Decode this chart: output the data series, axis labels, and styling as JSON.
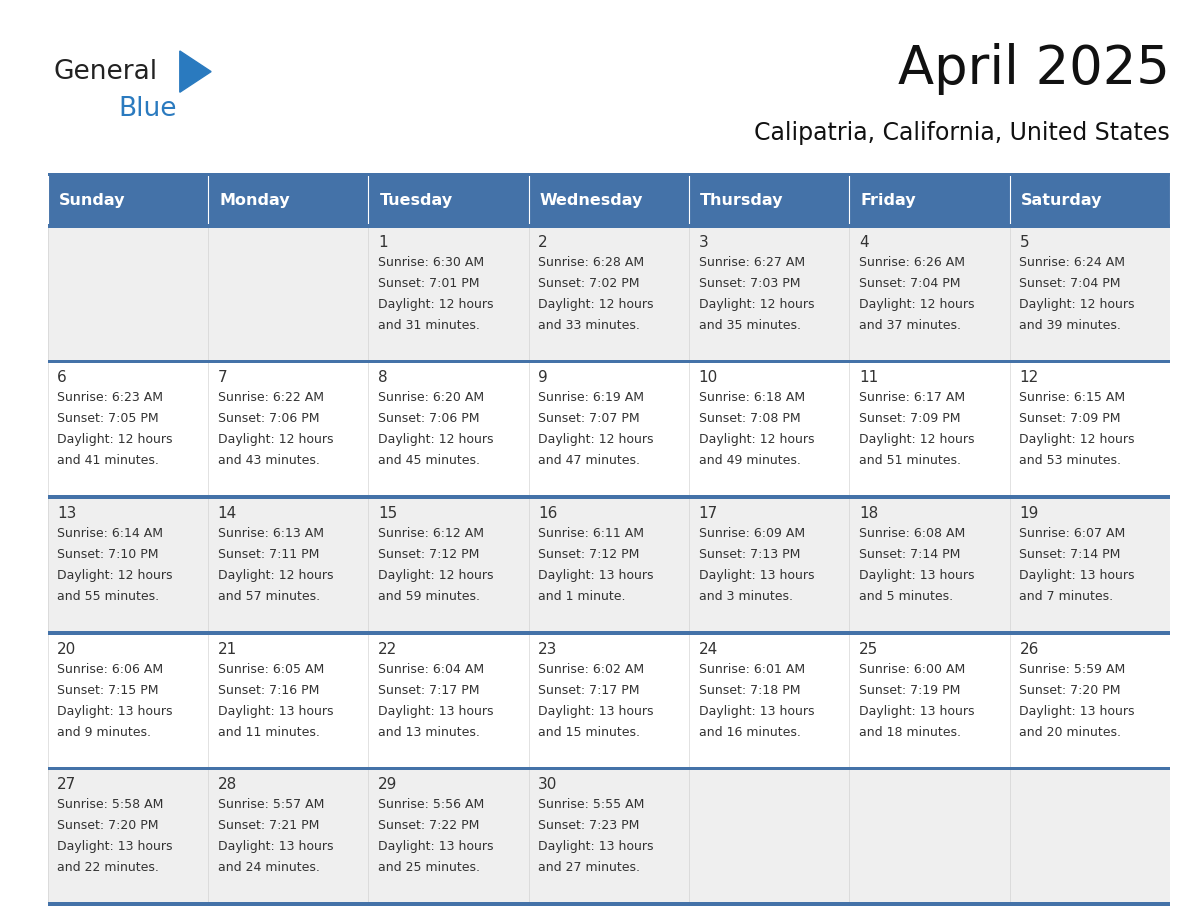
{
  "title": "April 2025",
  "subtitle": "Calipatria, California, United States",
  "header_color": "#4472a8",
  "header_text_color": "#ffffff",
  "day_names": [
    "Sunday",
    "Monday",
    "Tuesday",
    "Wednesday",
    "Thursday",
    "Friday",
    "Saturday"
  ],
  "bg_color": "#ffffff",
  "row_bg": [
    "#efefef",
    "#ffffff",
    "#efefef",
    "#ffffff",
    "#efefef"
  ],
  "border_color": "#4472a8",
  "text_color": "#333333",
  "logo_general_color": "#222222",
  "logo_blue_color": "#2a7abf",
  "logo_triangle_color": "#2a7abf",
  "days": [
    {
      "day": null,
      "col": 0,
      "row": 0
    },
    {
      "day": null,
      "col": 1,
      "row": 0
    },
    {
      "day": 1,
      "col": 2,
      "row": 0,
      "sunrise": "6:30 AM",
      "sunset": "7:01 PM",
      "daylight": "12 hours",
      "daylight2": "and 31 minutes."
    },
    {
      "day": 2,
      "col": 3,
      "row": 0,
      "sunrise": "6:28 AM",
      "sunset": "7:02 PM",
      "daylight": "12 hours",
      "daylight2": "and 33 minutes."
    },
    {
      "day": 3,
      "col": 4,
      "row": 0,
      "sunrise": "6:27 AM",
      "sunset": "7:03 PM",
      "daylight": "12 hours",
      "daylight2": "and 35 minutes."
    },
    {
      "day": 4,
      "col": 5,
      "row": 0,
      "sunrise": "6:26 AM",
      "sunset": "7:04 PM",
      "daylight": "12 hours",
      "daylight2": "and 37 minutes."
    },
    {
      "day": 5,
      "col": 6,
      "row": 0,
      "sunrise": "6:24 AM",
      "sunset": "7:04 PM",
      "daylight": "12 hours",
      "daylight2": "and 39 minutes."
    },
    {
      "day": 6,
      "col": 0,
      "row": 1,
      "sunrise": "6:23 AM",
      "sunset": "7:05 PM",
      "daylight": "12 hours",
      "daylight2": "and 41 minutes."
    },
    {
      "day": 7,
      "col": 1,
      "row": 1,
      "sunrise": "6:22 AM",
      "sunset": "7:06 PM",
      "daylight": "12 hours",
      "daylight2": "and 43 minutes."
    },
    {
      "day": 8,
      "col": 2,
      "row": 1,
      "sunrise": "6:20 AM",
      "sunset": "7:06 PM",
      "daylight": "12 hours",
      "daylight2": "and 45 minutes."
    },
    {
      "day": 9,
      "col": 3,
      "row": 1,
      "sunrise": "6:19 AM",
      "sunset": "7:07 PM",
      "daylight": "12 hours",
      "daylight2": "and 47 minutes."
    },
    {
      "day": 10,
      "col": 4,
      "row": 1,
      "sunrise": "6:18 AM",
      "sunset": "7:08 PM",
      "daylight": "12 hours",
      "daylight2": "and 49 minutes."
    },
    {
      "day": 11,
      "col": 5,
      "row": 1,
      "sunrise": "6:17 AM",
      "sunset": "7:09 PM",
      "daylight": "12 hours",
      "daylight2": "and 51 minutes."
    },
    {
      "day": 12,
      "col": 6,
      "row": 1,
      "sunrise": "6:15 AM",
      "sunset": "7:09 PM",
      "daylight": "12 hours",
      "daylight2": "and 53 minutes."
    },
    {
      "day": 13,
      "col": 0,
      "row": 2,
      "sunrise": "6:14 AM",
      "sunset": "7:10 PM",
      "daylight": "12 hours",
      "daylight2": "and 55 minutes."
    },
    {
      "day": 14,
      "col": 1,
      "row": 2,
      "sunrise": "6:13 AM",
      "sunset": "7:11 PM",
      "daylight": "12 hours",
      "daylight2": "and 57 minutes."
    },
    {
      "day": 15,
      "col": 2,
      "row": 2,
      "sunrise": "6:12 AM",
      "sunset": "7:12 PM",
      "daylight": "12 hours",
      "daylight2": "and 59 minutes."
    },
    {
      "day": 16,
      "col": 3,
      "row": 2,
      "sunrise": "6:11 AM",
      "sunset": "7:12 PM",
      "daylight": "13 hours",
      "daylight2": "and 1 minute."
    },
    {
      "day": 17,
      "col": 4,
      "row": 2,
      "sunrise": "6:09 AM",
      "sunset": "7:13 PM",
      "daylight": "13 hours",
      "daylight2": "and 3 minutes."
    },
    {
      "day": 18,
      "col": 5,
      "row": 2,
      "sunrise": "6:08 AM",
      "sunset": "7:14 PM",
      "daylight": "13 hours",
      "daylight2": "and 5 minutes."
    },
    {
      "day": 19,
      "col": 6,
      "row": 2,
      "sunrise": "6:07 AM",
      "sunset": "7:14 PM",
      "daylight": "13 hours",
      "daylight2": "and 7 minutes."
    },
    {
      "day": 20,
      "col": 0,
      "row": 3,
      "sunrise": "6:06 AM",
      "sunset": "7:15 PM",
      "daylight": "13 hours",
      "daylight2": "and 9 minutes."
    },
    {
      "day": 21,
      "col": 1,
      "row": 3,
      "sunrise": "6:05 AM",
      "sunset": "7:16 PM",
      "daylight": "13 hours",
      "daylight2": "and 11 minutes."
    },
    {
      "day": 22,
      "col": 2,
      "row": 3,
      "sunrise": "6:04 AM",
      "sunset": "7:17 PM",
      "daylight": "13 hours",
      "daylight2": "and 13 minutes."
    },
    {
      "day": 23,
      "col": 3,
      "row": 3,
      "sunrise": "6:02 AM",
      "sunset": "7:17 PM",
      "daylight": "13 hours",
      "daylight2": "and 15 minutes."
    },
    {
      "day": 24,
      "col": 4,
      "row": 3,
      "sunrise": "6:01 AM",
      "sunset": "7:18 PM",
      "daylight": "13 hours",
      "daylight2": "and 16 minutes."
    },
    {
      "day": 25,
      "col": 5,
      "row": 3,
      "sunrise": "6:00 AM",
      "sunset": "7:19 PM",
      "daylight": "13 hours",
      "daylight2": "and 18 minutes."
    },
    {
      "day": 26,
      "col": 6,
      "row": 3,
      "sunrise": "5:59 AM",
      "sunset": "7:20 PM",
      "daylight": "13 hours",
      "daylight2": "and 20 minutes."
    },
    {
      "day": 27,
      "col": 0,
      "row": 4,
      "sunrise": "5:58 AM",
      "sunset": "7:20 PM",
      "daylight": "13 hours",
      "daylight2": "and 22 minutes."
    },
    {
      "day": 28,
      "col": 1,
      "row": 4,
      "sunrise": "5:57 AM",
      "sunset": "7:21 PM",
      "daylight": "13 hours",
      "daylight2": "and 24 minutes."
    },
    {
      "day": 29,
      "col": 2,
      "row": 4,
      "sunrise": "5:56 AM",
      "sunset": "7:22 PM",
      "daylight": "13 hours",
      "daylight2": "and 25 minutes."
    },
    {
      "day": 30,
      "col": 3,
      "row": 4,
      "sunrise": "5:55 AM",
      "sunset": "7:23 PM",
      "daylight": "13 hours",
      "daylight2": "and 27 minutes."
    },
    {
      "day": null,
      "col": 4,
      "row": 4
    },
    {
      "day": null,
      "col": 5,
      "row": 4
    },
    {
      "day": null,
      "col": 6,
      "row": 4
    }
  ]
}
